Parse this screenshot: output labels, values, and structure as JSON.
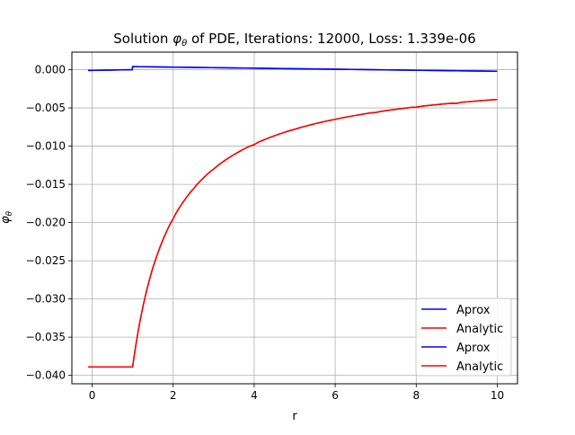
{
  "chart_data": {
    "type": "line",
    "title_prefix": "Solution ",
    "title_symbol": "φ",
    "title_subscript": "θ",
    "title_suffix": " of PDE, Iterations: 12000, Loss: 1.339e-06",
    "xlabel": "r",
    "ylabel_symbol": "φ",
    "ylabel_subscript": "θ",
    "xlim": [
      -0.5,
      10.5
    ],
    "ylim": [
      -0.0411,
      0.0023
    ],
    "xticks": [
      0,
      2,
      4,
      6,
      8,
      10
    ],
    "xtick_labels": [
      "0",
      "2",
      "4",
      "6",
      "8",
      "10"
    ],
    "yticks": [
      0.0,
      -0.005,
      -0.01,
      -0.015,
      -0.02,
      -0.025,
      -0.03,
      -0.035,
      -0.04
    ],
    "ytick_labels": [
      "0.000",
      "−0.005",
      "−0.010",
      "−0.015",
      "−0.020",
      "−0.025",
      "−0.030",
      "−0.035",
      "−0.040"
    ],
    "grid": true,
    "legend_position": "lower-right",
    "series": [
      {
        "name": "Aprox",
        "color": "#0000ff",
        "x": [
          -0.1,
          0.99,
          1.0,
          10.0
        ],
        "y": [
          -0.0001,
          0.0,
          0.0004,
          -0.0002
        ]
      },
      {
        "name": "Analytic",
        "color": "#ff0000",
        "x": [
          -0.1,
          1.0,
          1.1,
          1.25,
          1.5,
          2.0,
          2.5,
          3.0,
          4.0,
          5.0,
          6.0,
          7.0,
          8.0,
          9.0,
          10.0
        ],
        "y": [
          -0.0389,
          -0.0389,
          -0.0354,
          -0.0311,
          -0.0259,
          -0.0195,
          -0.0156,
          -0.013,
          -0.0098,
          -0.0078,
          -0.0065,
          -0.0056,
          -0.0049,
          -0.0044,
          -0.0039
        ]
      },
      {
        "name": "Aprox",
        "color": "#0000ff",
        "x": [
          -0.1,
          0.99,
          1.0,
          10.0
        ],
        "y": [
          -0.0001,
          0.0,
          0.0004,
          -0.0002
        ]
      },
      {
        "name": "Analytic",
        "color": "#ff0000",
        "x": [
          -0.1,
          1.0,
          1.1,
          1.25,
          1.5,
          2.0,
          2.5,
          3.0,
          4.0,
          5.0,
          6.0,
          7.0,
          8.0,
          9.0,
          10.0
        ],
        "y": [
          -0.0389,
          -0.0389,
          -0.0354,
          -0.0311,
          -0.0259,
          -0.0195,
          -0.0156,
          -0.013,
          -0.0098,
          -0.0078,
          -0.0065,
          -0.0056,
          -0.0049,
          -0.0044,
          -0.0039
        ]
      }
    ]
  }
}
